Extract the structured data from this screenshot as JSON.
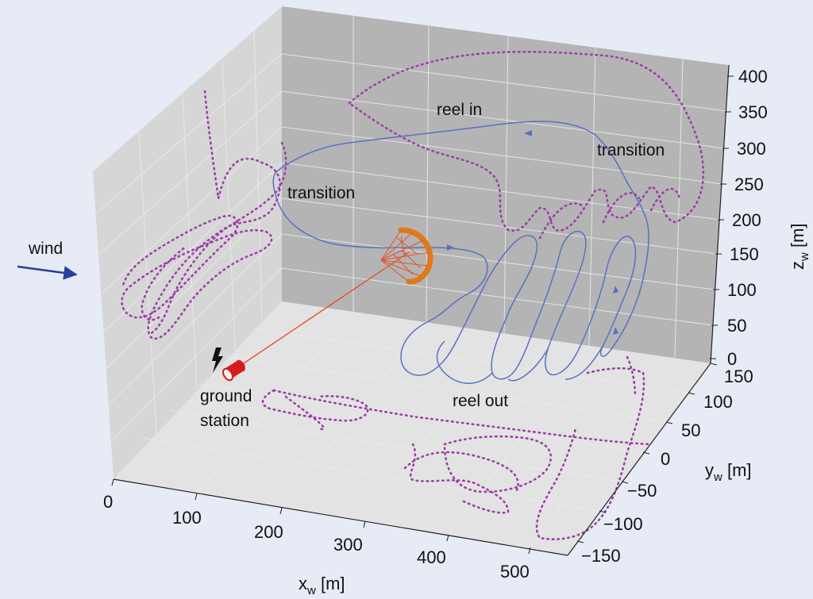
{
  "chart_data": {
    "type": "3d-trajectory",
    "annotations": {
      "wind": "wind",
      "reel_in": "reel in",
      "reel_out": "reel out",
      "transition_left": "transition",
      "transition_right": "transition",
      "ground_station_line1": "ground",
      "ground_station_line2": "station"
    },
    "axes": {
      "x": {
        "label": "x",
        "sub": "w",
        "unit": " [m]",
        "ticks": [
          "0",
          "100",
          "200",
          "300",
          "400",
          "500"
        ]
      },
      "y": {
        "label": "y",
        "sub": "w",
        "unit": " [m]",
        "ticks": [
          "150",
          "100",
          "50",
          "0",
          "−50",
          "−100",
          "−150"
        ]
      },
      "z": {
        "label": "z",
        "sub": "w",
        "unit": " [m]",
        "ticks": [
          "400",
          "350",
          "300",
          "250",
          "200",
          "150",
          "100",
          "50",
          "0"
        ]
      }
    },
    "colors": {
      "background": "#e6ebf5",
      "back_wall": "#b4b4b4",
      "side_wall": "#d6d6d6",
      "floor": "#e3e3e3",
      "trajectory": "#5a70c2",
      "projection": "#9b3fa6",
      "tether": "#e0542c",
      "kite": "#e0781c",
      "wind_arrow": "#2b3f9e",
      "ground_station": "#d41c1c"
    }
  }
}
